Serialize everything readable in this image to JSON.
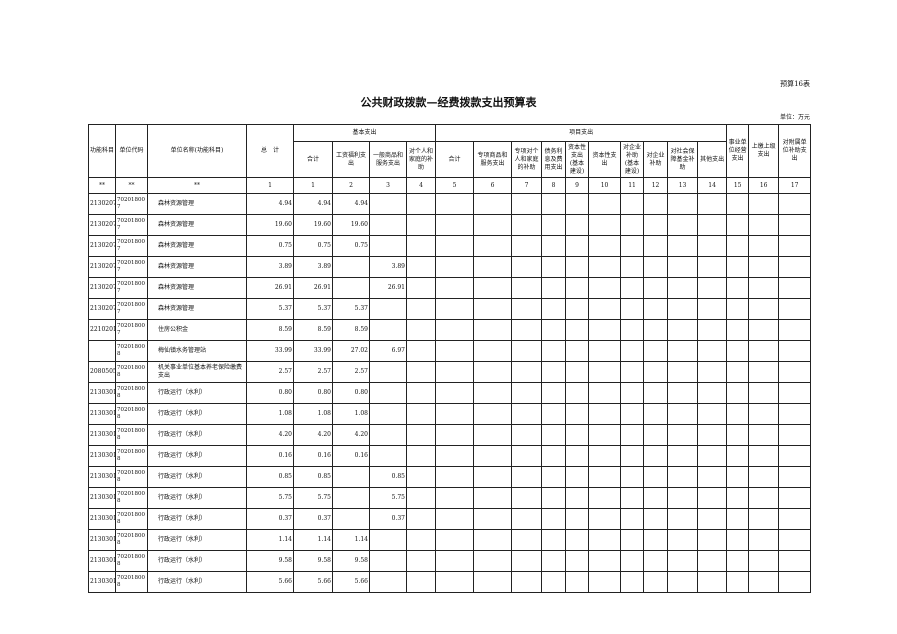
{
  "form_no": "预算16表",
  "title": "公共财政拨款—经费拨款支出预算表",
  "unit": "单位：万元",
  "headers": {
    "func": "功能科目",
    "code": "单位代码",
    "name": "单位名称(功能科目)",
    "total": "总　计",
    "basic": "基本支出",
    "project": "项目支出",
    "basic_cols": [
      "合计",
      "工资福利支出",
      "一般商品和服务支出",
      "对个人和家庭的补助"
    ],
    "project_cols": [
      "合计",
      "专项商品和服务支出",
      "专项对个人和家庭的补助",
      "债务利息及费用支出",
      "资本性支出(基本建设)",
      "资本性支出",
      "对企业补助(基本建设)",
      "对企业补助",
      "对社会保障基金补助",
      "其他支出"
    ],
    "other_cols": [
      "事业单位经营支出",
      "上缴上级支出",
      "对附属单位补助支出"
    ]
  },
  "index_row": [
    "**",
    "**",
    "**",
    "1",
    "1",
    "2",
    "3",
    "4",
    "5",
    "6",
    "7",
    "8",
    "9",
    "10",
    "11",
    "12",
    "13",
    "14",
    "15",
    "16",
    "17"
  ],
  "rows": [
    {
      "func": "2130207",
      "code": "702018007",
      "name": "森林资源管理",
      "total": "4.94",
      "basic_total": "4.94",
      "wage": "4.94",
      "goods": ""
    },
    {
      "func": "2130207",
      "code": "702018007",
      "name": "森林资源管理",
      "total": "19.60",
      "basic_total": "19.60",
      "wage": "19.60",
      "goods": ""
    },
    {
      "func": "2130207",
      "code": "702018007",
      "name": "森林资源管理",
      "total": "0.75",
      "basic_total": "0.75",
      "wage": "0.75",
      "goods": ""
    },
    {
      "func": "2130207",
      "code": "702018007",
      "name": "森林资源管理",
      "total": "3.89",
      "basic_total": "3.89",
      "wage": "",
      "goods": "3.89"
    },
    {
      "func": "2130207",
      "code": "702018007",
      "name": "森林资源管理",
      "total": "26.91",
      "basic_total": "26.91",
      "wage": "",
      "goods": "26.91"
    },
    {
      "func": "2130207",
      "code": "702018007",
      "name": "森林资源管理",
      "total": "5.37",
      "basic_total": "5.37",
      "wage": "5.37",
      "goods": ""
    },
    {
      "func": "2210201",
      "code": "702018007",
      "name": "住房公积金",
      "total": "8.59",
      "basic_total": "8.59",
      "wage": "8.59",
      "goods": ""
    },
    {
      "func": "",
      "code": "702018008",
      "name": "梅仙镇水务管理站",
      "total": "33.99",
      "basic_total": "33.99",
      "wage": "27.02",
      "goods": "6.97"
    },
    {
      "func": "2080505",
      "code": "702018008",
      "name": "机关事业单位基本养老保险缴费支出",
      "total": "2.57",
      "basic_total": "2.57",
      "wage": "2.57",
      "goods": ""
    },
    {
      "func": "2130301",
      "code": "702018008",
      "name": "行政运行（水利）",
      "total": "0.80",
      "basic_total": "0.80",
      "wage": "0.80",
      "goods": ""
    },
    {
      "func": "2130301",
      "code": "702018008",
      "name": "行政运行（水利）",
      "total": "1.08",
      "basic_total": "1.08",
      "wage": "1.08",
      "goods": ""
    },
    {
      "func": "2130301",
      "code": "702018008",
      "name": "行政运行（水利）",
      "total": "4.20",
      "basic_total": "4.20",
      "wage": "4.20",
      "goods": ""
    },
    {
      "func": "2130301",
      "code": "702018008",
      "name": "行政运行（水利）",
      "total": "0.16",
      "basic_total": "0.16",
      "wage": "0.16",
      "goods": ""
    },
    {
      "func": "2130301",
      "code": "702018008",
      "name": "行政运行（水利）",
      "total": "0.85",
      "basic_total": "0.85",
      "wage": "",
      "goods": "0.85"
    },
    {
      "func": "2130301",
      "code": "702018008",
      "name": "行政运行（水利）",
      "total": "5.75",
      "basic_total": "5.75",
      "wage": "",
      "goods": "5.75"
    },
    {
      "func": "2130301",
      "code": "702018008",
      "name": "行政运行（水利）",
      "total": "0.37",
      "basic_total": "0.37",
      "wage": "",
      "goods": "0.37"
    },
    {
      "func": "2130301",
      "code": "702018008",
      "name": "行政运行（水利）",
      "total": "1.14",
      "basic_total": "1.14",
      "wage": "1.14",
      "goods": ""
    },
    {
      "func": "2130301",
      "code": "702018008",
      "name": "行政运行（水利）",
      "total": "9.58",
      "basic_total": "9.58",
      "wage": "9.58",
      "goods": ""
    },
    {
      "func": "2130301",
      "code": "702018008",
      "name": "行政运行（水利）",
      "total": "5.66",
      "basic_total": "5.66",
      "wage": "5.66",
      "goods": ""
    }
  ]
}
